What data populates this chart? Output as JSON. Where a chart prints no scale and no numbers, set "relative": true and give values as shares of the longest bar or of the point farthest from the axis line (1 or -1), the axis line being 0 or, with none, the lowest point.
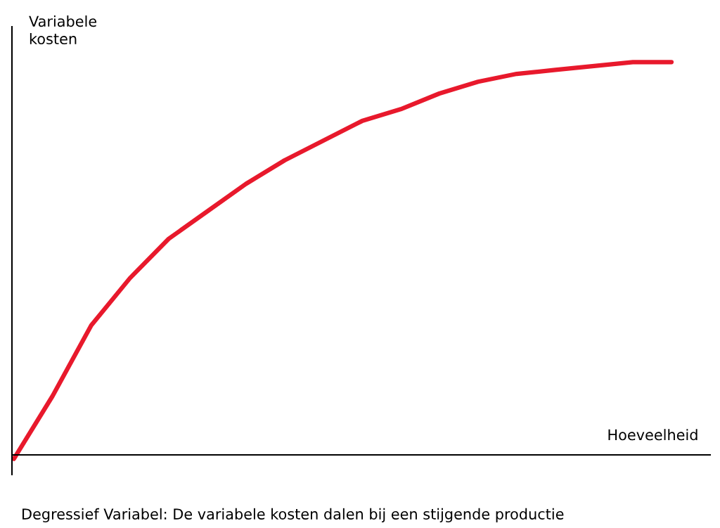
{
  "chart_data": {
    "type": "line",
    "relative": true,
    "title": "Degressief Variabel: De variabele kosten dalen bij een stijgende productie",
    "xlabel": "Hoeveelheid",
    "ylabel": "Variabele\nkosten",
    "categories": [
      null,
      null,
      null,
      null,
      null,
      null,
      null,
      null,
      null,
      null,
      null,
      null,
      null,
      null,
      null,
      null,
      null,
      null
    ],
    "series": [
      {
        "color": "#e8192c",
        "values": [
          -0.01,
          0.15,
          0.33,
          0.45,
          0.55,
          0.62,
          0.69,
          0.75,
          0.8,
          0.85,
          0.88,
          0.92,
          0.95,
          0.97,
          0.98,
          0.99,
          1,
          1
        ]
      }
    ],
    "line_style": "solid",
    "marker": "none"
  }
}
